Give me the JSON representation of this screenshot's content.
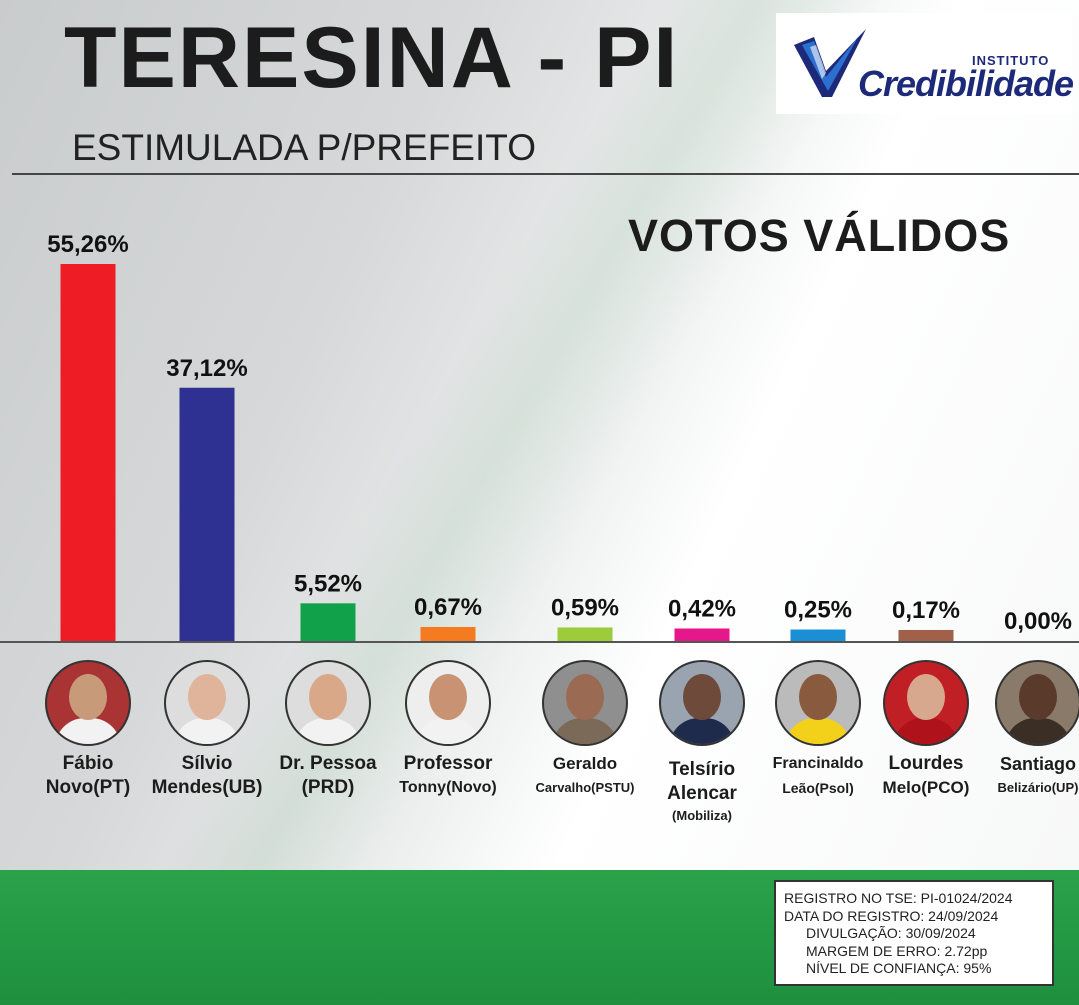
{
  "header": {
    "title": "TERESINA - PI",
    "subtitle": "ESTIMULADA P/PREFEITO",
    "logo_small": "INSTITUTO",
    "logo_big": "Credibilidade"
  },
  "chart_data": {
    "type": "bar",
    "title": "VOTOS VÁLIDOS",
    "categories": [
      "Fábio Novo(PT)",
      "Sílvio Mendes(UB)",
      "Dr. Pessoa (PRD)",
      "Professor Tonny(Novo)",
      "Geraldo Carvalho(PSTU)",
      "Telsírio Alencar (Mobiliza)",
      "Francinaldo Leão(Psol)",
      "Lourdes Melo(PCO)",
      "Santiago Belizário(UP)"
    ],
    "values": [
      55.26,
      37.12,
      5.52,
      0.67,
      0.59,
      0.42,
      0.25,
      0.17,
      0.0
    ],
    "value_labels": [
      "55,26%",
      "37,12%",
      "5,52%",
      "0,67%",
      "0,59%",
      "0,42%",
      "0,25%",
      "0,17%",
      "0,00%"
    ],
    "colors": [
      "#ee1c25",
      "#2e3192",
      "#12a14b",
      "#f47b20",
      "#9ccb3b",
      "#e6178b",
      "#1a8fd6",
      "#a0604a",
      "#999999"
    ],
    "ylim": [
      0,
      55.26
    ],
    "grid": false,
    "legend": "none"
  },
  "candidates": [
    {
      "line1": "Fábio",
      "line2": "Novo(PT)",
      "line3": ""
    },
    {
      "line1": "Sílvio",
      "line2": "Mendes(UB)",
      "line3": ""
    },
    {
      "line1": "Dr. Pessoa",
      "line2": "(PRD)",
      "line3": ""
    },
    {
      "line1": "Professor",
      "line2": "Tonny(Novo)",
      "line3": ""
    },
    {
      "line1": "Geraldo",
      "line2": "Carvalho(PSTU)",
      "line3": ""
    },
    {
      "line1": "Telsírio",
      "line2": "Alencar",
      "line3": "(Mobiliza)"
    },
    {
      "line1": "Francinaldo",
      "line2": "Leão(Psol)",
      "line3": ""
    },
    {
      "line1": "Lourdes",
      "line2": "Melo(PCO)",
      "line3": ""
    },
    {
      "line1": "Santiago",
      "line2": "Belizário(UP)",
      "line3": ""
    }
  ],
  "registro": {
    "line1": "REGISTRO NO TSE: PI-01024/2024",
    "line2": "DATA DO REGISTRO: 24/09/2024",
    "line3": "DIVULGAÇÃO: 30/09/2024",
    "line4": "MARGEM DE ERRO: 2.72pp",
    "line5": "NÍVEL DE CONFIANÇA: 95%"
  }
}
